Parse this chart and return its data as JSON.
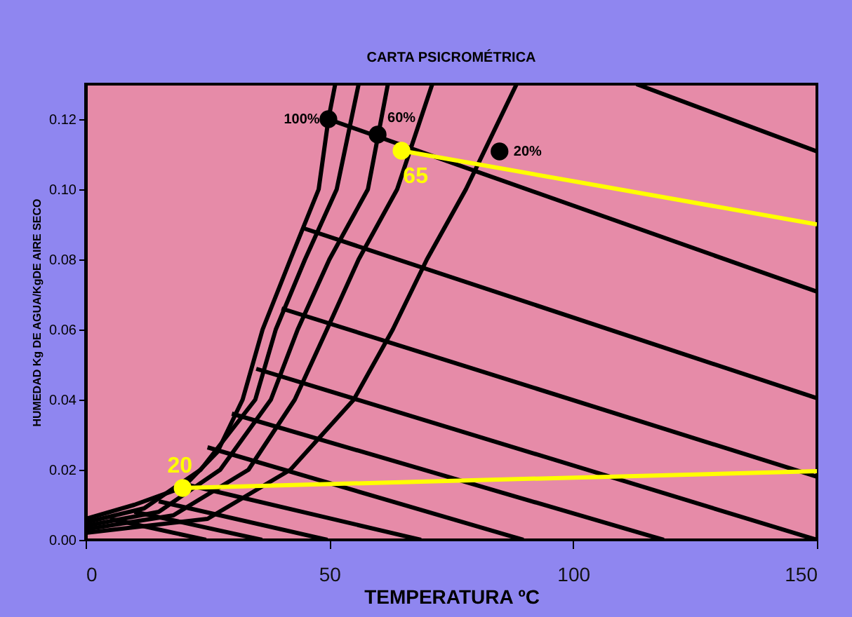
{
  "chart_data": {
    "type": "line",
    "title": "CARTA PSICROMÉTRICA",
    "xlabel": "TEMPERATURA  ºC",
    "ylabel": "HUMEDAD   Kg DE AGUA/KgDE AIRE SECO",
    "xlim": [
      0,
      150
    ],
    "ylim": [
      0,
      0.13
    ],
    "xticks": [
      0,
      50,
      100,
      150
    ],
    "yticks": [
      {
        "value": 0,
        "label": "0.00"
      },
      {
        "value": 0.02,
        "label": "0.02"
      },
      {
        "value": 0.04,
        "label": "0.04"
      },
      {
        "value": 0.06,
        "label": "0.06"
      },
      {
        "value": 0.08,
        "label": "0.08"
      },
      {
        "value": 0.1,
        "label": "0.10"
      },
      {
        "value": 0.12,
        "label": "0.12"
      }
    ],
    "grid": false,
    "line_style": "solid",
    "marker": "none",
    "series": [
      {
        "color": "#000000",
        "x": [
          0,
          10,
          20,
          27,
          32.2,
          36.3,
          42,
          47.8,
          49.8,
          51.2
        ],
        "values": [
          0.006,
          0.01,
          0.015,
          0.025,
          0.04,
          0.06,
          0.08,
          0.1,
          0.12,
          0.13
        ]
      },
      {
        "color": "#000000",
        "x": [
          0,
          12,
          23.6,
          34.8,
          39,
          45,
          51.5,
          56
        ],
        "values": [
          0.005,
          0.009,
          0.02,
          0.04,
          0.06,
          0.08,
          0.1,
          0.13
        ]
      },
      {
        "color": "#000000",
        "x": [
          0,
          15,
          27.6,
          38,
          43.5,
          50,
          57.9,
          62
        ],
        "values": [
          0.004,
          0.008,
          0.02,
          0.04,
          0.06,
          0.08,
          0.1,
          0.13
        ]
      },
      {
        "color": "#000000",
        "x": [
          0,
          18,
          33.4,
          42.9,
          49.5,
          56,
          63.9,
          71.1
        ],
        "values": [
          0.003,
          0.007,
          0.02,
          0.04,
          0.06,
          0.08,
          0.1,
          0.13
        ]
      },
      {
        "color": "#000000",
        "x": [
          0,
          25,
          42,
          55,
          63,
          70,
          78,
          88.4
        ],
        "values": [
          0.002,
          0.006,
          0.02,
          0.04,
          0.06,
          0.08,
          0.1,
          0.13
        ]
      },
      {
        "color": "#000000",
        "x": [
          113,
          150
        ],
        "values": [
          0.13,
          0.1108
        ]
      },
      {
        "color": "#000000",
        "x": [
          49.8,
          150
        ],
        "values": [
          0.12,
          0.0708
        ]
      },
      {
        "color": "#000000",
        "x": [
          44.9,
          150
        ],
        "values": [
          0.0888,
          0.0404
        ]
      },
      {
        "color": "#000000",
        "x": [
          40.2,
          150
        ],
        "values": [
          0.066,
          0.018
        ]
      },
      {
        "color": "#000000",
        "x": [
          35,
          150
        ],
        "values": [
          0.0488,
          0
        ]
      },
      {
        "color": "#000000",
        "x": [
          30,
          118.6
        ],
        "values": [
          0.036,
          0
        ]
      },
      {
        "color": "#000000",
        "x": [
          25,
          89.8
        ],
        "values": [
          0.0264,
          0
        ]
      },
      {
        "color": "#000000",
        "x": [
          20,
          68.8
        ],
        "values": [
          0.016,
          0
        ]
      },
      {
        "color": "#000000",
        "x": [
          15,
          49.6
        ],
        "values": [
          0.011,
          0
        ]
      },
      {
        "color": "#000000",
        "x": [
          10,
          36.2
        ],
        "values": [
          0.008,
          0
        ]
      },
      {
        "color": "#000000",
        "x": [
          5,
          24.7
        ],
        "values": [
          0.006,
          0
        ]
      },
      {
        "color": "#ffff00",
        "x": [
          64.8,
          150
        ],
        "values": [
          0.111,
          0.09
        ]
      },
      {
        "color": "#ffff00",
        "x": [
          19.9,
          150
        ],
        "values": [
          0.0148,
          0.0196
        ]
      },
      {
        "type": "scatter",
        "marker": "circle",
        "color": "#000000",
        "x": [
          49.8,
          59.9,
          84.9
        ],
        "values": [
          0.12,
          0.1156,
          0.1108
        ]
      },
      {
        "type": "scatter",
        "marker": "circle",
        "color": "#ffff00",
        "x": [
          64.8,
          19.9
        ],
        "values": [
          0.111,
          0.0148
        ]
      }
    ],
    "annotations": [
      {
        "text": "100%",
        "x": 49.8,
        "y": 0.12
      },
      {
        "text": "60%",
        "x": 59.9,
        "y": 0.1156
      },
      {
        "text": "20%",
        "x": 84.9,
        "y": 0.1108
      },
      {
        "text": "65",
        "x": 64.8,
        "y": 0.111
      },
      {
        "text": "20",
        "x": 19.9,
        "y": 0.0148
      }
    ]
  }
}
